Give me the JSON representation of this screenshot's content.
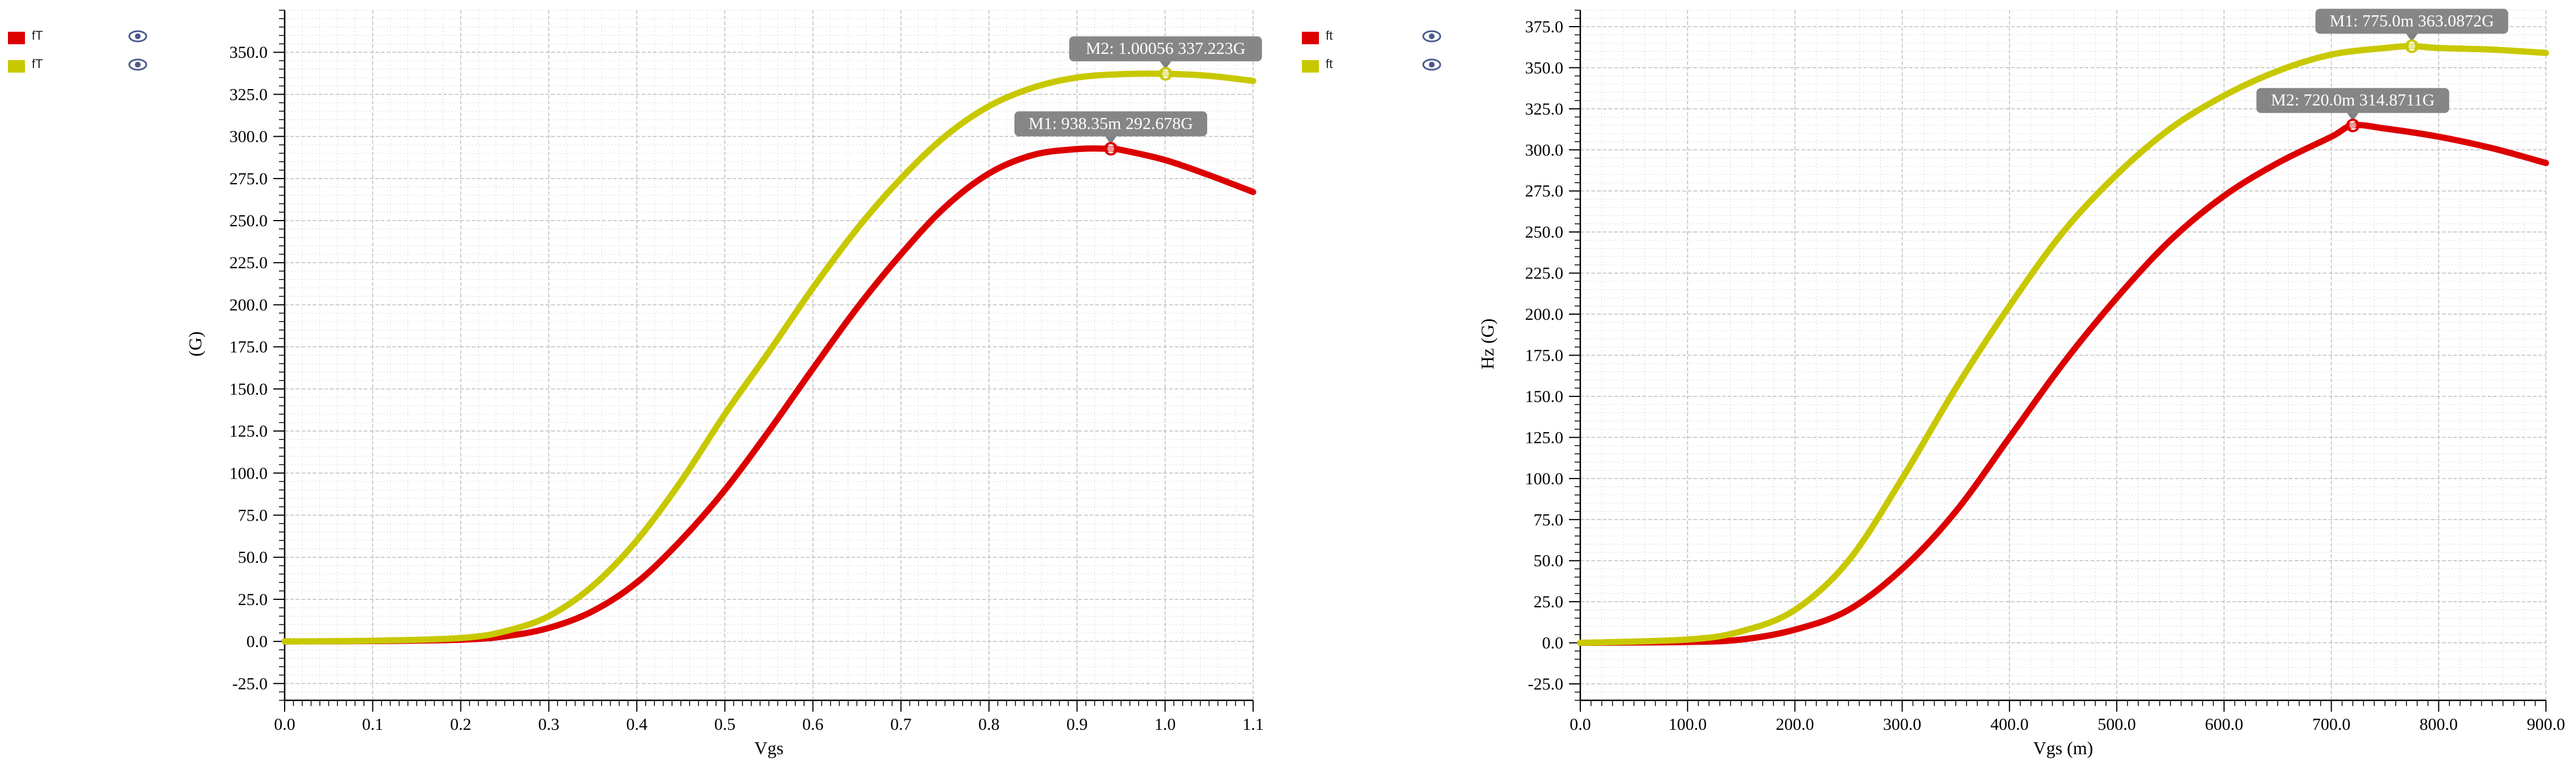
{
  "colors": {
    "red": "#dc0000",
    "yellow": "#c8c800",
    "marker_bg": "#808080",
    "grid": "#c8c8c8"
  },
  "chart_data": [
    {
      "type": "line",
      "title": "",
      "xlabel": "Vgs",
      "ylabel": "(G)",
      "xlim": [
        0.0,
        1.1
      ],
      "ylim": [
        -35,
        375
      ],
      "xticks": [
        "0.0",
        "0.1",
        "0.2",
        "0.3",
        "0.4",
        "0.5",
        "0.6",
        "0.7",
        "0.8",
        "0.9",
        "1.0",
        "1.1"
      ],
      "yticks": [
        "-25.0",
        "0.0",
        "25.0",
        "50.0",
        "75.0",
        "100.0",
        "125.0",
        "150.0",
        "175.0",
        "200.0",
        "225.0",
        "250.0",
        "275.0",
        "300.0",
        "325.0",
        "350.0"
      ],
      "grid": true,
      "legend_position": "left",
      "series": [
        {
          "name": "fT",
          "color": "#dc0000",
          "x": [
            0.0,
            0.1,
            0.2,
            0.25,
            0.3,
            0.35,
            0.4,
            0.45,
            0.5,
            0.55,
            0.6,
            0.65,
            0.7,
            0.75,
            0.8,
            0.85,
            0.9,
            0.938,
            0.95,
            1.0,
            1.05,
            1.1
          ],
          "y": [
            0,
            0.2,
            1,
            3,
            8,
            18,
            35,
            60,
            90,
            125,
            162,
            198,
            230,
            258,
            278,
            289,
            292.5,
            292.678,
            292,
            286,
            277,
            267
          ]
        },
        {
          "name": "fT",
          "color": "#c8c800",
          "x": [
            0.0,
            0.1,
            0.2,
            0.25,
            0.3,
            0.35,
            0.4,
            0.45,
            0.5,
            0.55,
            0.6,
            0.65,
            0.7,
            0.75,
            0.8,
            0.85,
            0.9,
            0.95,
            1.0,
            1.05,
            1.1
          ],
          "y": [
            0,
            0.4,
            2,
            6,
            15,
            33,
            60,
            95,
            135,
            172,
            210,
            245,
            275,
            300,
            318,
            329,
            335,
            337,
            337.223,
            336,
            333
          ]
        }
      ],
      "markers": [
        {
          "label": "M1: 938.35m 292.678G",
          "x": 0.93835,
          "y": 292.678,
          "series": 0
        },
        {
          "label": "M2: 1.00056 337.223G",
          "x": 1.00056,
          "y": 337.223,
          "series": 1
        }
      ]
    },
    {
      "type": "line",
      "title": "",
      "xlabel": "Vgs (m)",
      "ylabel": "Hz (G)",
      "xlim": [
        0,
        900
      ],
      "ylim": [
        -35,
        385
      ],
      "xticks": [
        "0.0",
        "100.0",
        "200.0",
        "300.0",
        "400.0",
        "500.0",
        "600.0",
        "700.0",
        "800.0",
        "900.0"
      ],
      "yticks": [
        "-25.0",
        "0.0",
        "25.0",
        "50.0",
        "75.0",
        "100.0",
        "125.0",
        "150.0",
        "175.0",
        "200.0",
        "225.0",
        "250.0",
        "275.0",
        "300.0",
        "325.0",
        "350.0",
        "375.0"
      ],
      "grid": true,
      "legend_position": "left",
      "series": [
        {
          "name": "ft",
          "color": "#dc0000",
          "x": [
            0,
            100,
            150,
            200,
            250,
            300,
            350,
            400,
            450,
            500,
            550,
            600,
            650,
            700,
            720,
            750,
            800,
            850,
            900
          ],
          "y": [
            0,
            0.5,
            2,
            8,
            20,
            45,
            80,
            125,
            170,
            210,
            245,
            272,
            292,
            308,
            314.871,
            313,
            308,
            301,
            292
          ]
        },
        {
          "name": "ft",
          "color": "#c8c800",
          "x": [
            0,
            100,
            150,
            200,
            250,
            300,
            350,
            400,
            450,
            500,
            550,
            600,
            650,
            700,
            750,
            775,
            800,
            850,
            900
          ],
          "y": [
            0,
            2,
            7,
            20,
            50,
            100,
            155,
            205,
            250,
            285,
            313,
            333,
            348,
            358,
            362,
            363.087,
            362,
            361,
            359
          ]
        }
      ],
      "markers": [
        {
          "label": "M1: 775.0m 363.0872G",
          "x": 775,
          "y": 363.0872,
          "series": 1
        },
        {
          "label": "M2: 720.0m 314.8711G",
          "x": 720,
          "y": 314.8711,
          "series": 0
        }
      ]
    }
  ]
}
